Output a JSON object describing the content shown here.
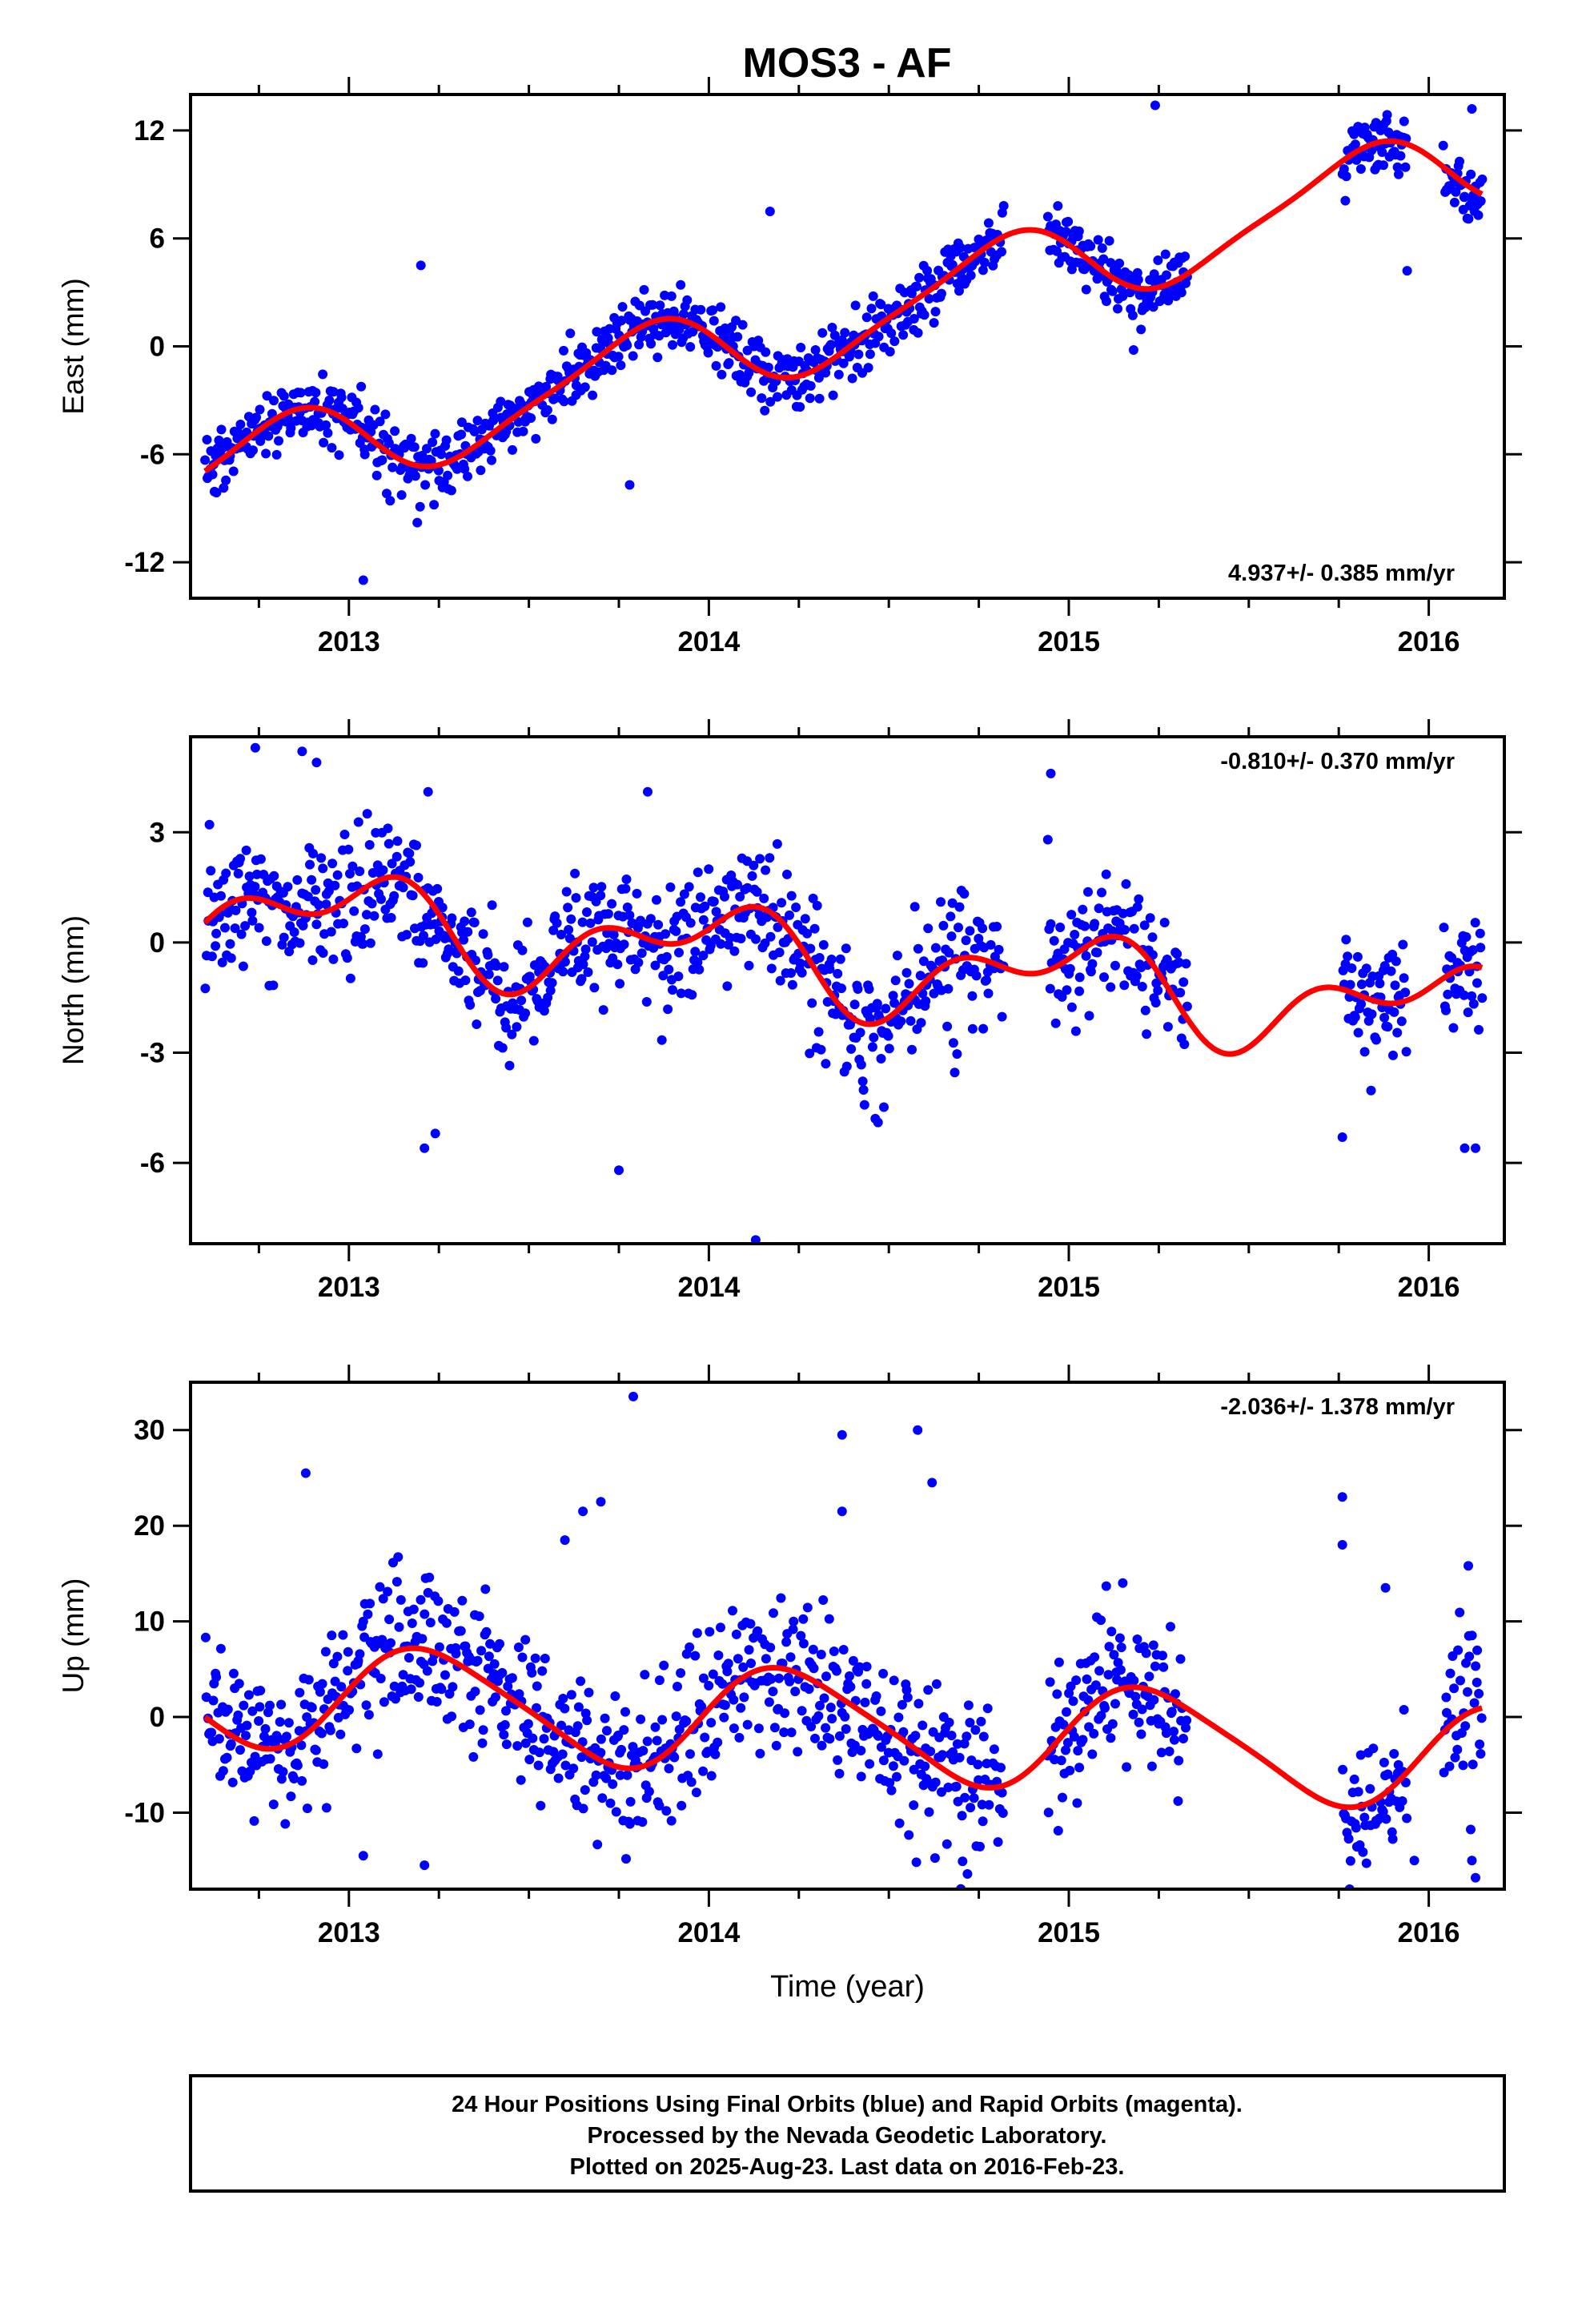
{
  "title": "MOS3 - AF",
  "colors": {
    "data": "#0000ff",
    "fit": "#ff0000",
    "frame": "#000000"
  },
  "chart_data": [
    {
      "type": "scatter",
      "ylabel": "East (mm)",
      "xlabel": "",
      "xlim": [
        2012.56,
        2016.21
      ],
      "ylim": [
        -14,
        14
      ],
      "x_ticks": [
        2013,
        2014,
        2015,
        2016
      ],
      "y_ticks": [
        12,
        6,
        0,
        -6,
        -12
      ],
      "y_tick_labels": [
        "12",
        "6",
        "0",
        "-6",
        "-12"
      ],
      "rate": "4.937+/- 0.385 mm/yr",
      "rate_position": "bottom-right",
      "trend_start": -7.3,
      "trend_per_year": 4.937,
      "season": [
        [
          1.0,
          -2.2,
          0.8
        ],
        [
          2.0,
          -0.4,
          0.3
        ]
      ],
      "scatter_sd": 0.9,
      "outliers": [
        [
          2013.19,
          -9.8
        ],
        [
          2013.04,
          -13.0
        ],
        [
          2013.78,
          -7.7
        ],
        [
          2015.04,
          4.3
        ],
        [
          2015.18,
          -0.2
        ],
        [
          2015.24,
          13.4
        ],
        [
          2016.12,
          13.2
        ],
        [
          2015.94,
          4.2
        ],
        [
          2014.17,
          7.5
        ],
        [
          2013.2,
          4.5
        ],
        [
          2013.76,
          2.2
        ]
      ],
      "series": [
        {
          "name": "Final Orbits (blue)",
          "segments": [
            [
              2012.6,
              2014.82
            ],
            [
              2014.94,
              2015.33
            ],
            [
              2015.76,
              2015.94
            ],
            [
              2016.04,
              2016.15
            ]
          ],
          "points_per_year": 320
        },
        {
          "name": "Fit"
        }
      ]
    },
    {
      "type": "scatter",
      "ylabel": "North (mm)",
      "xlabel": "",
      "xlim": [
        2012.56,
        2016.21
      ],
      "ylim": [
        -8.2,
        5.6
      ],
      "x_ticks": [
        2013,
        2014,
        2015,
        2016
      ],
      "y_ticks": [
        3,
        0,
        -3,
        -6
      ],
      "y_tick_labels": [
        "3",
        "0",
        "-3",
        "-6"
      ],
      "rate": "-0.810+/- 0.370 mm/yr",
      "rate_position": "top-right",
      "trend_start": 0.9,
      "trend_per_year": -0.81,
      "season": [
        [
          1.0,
          0.0,
          1.0
        ],
        [
          2.0,
          0.6,
          -0.4
        ]
      ],
      "scatter_sd": 0.9,
      "outliers": [
        [
          2012.74,
          5.3
        ],
        [
          2012.87,
          5.2
        ],
        [
          2012.91,
          4.9
        ],
        [
          2013.21,
          -5.6
        ],
        [
          2013.24,
          -5.2
        ],
        [
          2013.75,
          -6.2
        ],
        [
          2014.13,
          -8.1
        ],
        [
          2014.47,
          -4.9
        ],
        [
          2014.95,
          4.6
        ],
        [
          2015.76,
          -5.3
        ],
        [
          2016.1,
          -5.6
        ],
        [
          2016.13,
          -5.6
        ],
        [
          2013.22,
          4.1
        ],
        [
          2013.83,
          4.1
        ]
      ],
      "series": [
        {
          "name": "Final Orbits (blue)",
          "segments": [
            [
              2012.6,
              2014.82
            ],
            [
              2014.94,
              2015.33
            ],
            [
              2015.76,
              2015.94
            ],
            [
              2016.04,
              2016.15
            ]
          ],
          "points_per_year": 320
        },
        {
          "name": "Fit"
        }
      ]
    },
    {
      "type": "scatter",
      "ylabel": "Up (mm)",
      "xlabel": "Time (year)",
      "xlim": [
        2012.56,
        2016.21
      ],
      "ylim": [
        -18,
        35
      ],
      "x_ticks": [
        2013,
        2014,
        2015,
        2016
      ],
      "y_ticks": [
        30,
        20,
        10,
        0,
        -10
      ],
      "y_tick_labels": [
        "30",
        "20",
        "10",
        "0",
        "-10"
      ],
      "rate": "-2.036+/- 1.378 mm/yr",
      "rate_position": "top-right",
      "trend_start": 2.8,
      "trend_per_year": -2.036,
      "season": [
        [
          1.0,
          5.4,
          0.6
        ],
        [
          2.0,
          0.8,
          0.3
        ]
      ],
      "scatter_sd": 4.2,
      "outliers": [
        [
          2012.88,
          25.5
        ],
        [
          2013.79,
          33.5
        ],
        [
          2014.37,
          29.5
        ],
        [
          2014.58,
          30.0
        ],
        [
          2014.37,
          21.5
        ],
        [
          2014.62,
          24.5
        ],
        [
          2013.7,
          22.5
        ],
        [
          2015.76,
          23.0
        ],
        [
          2015.76,
          18.0
        ],
        [
          2015.88,
          13.5
        ],
        [
          2016.11,
          15.8
        ],
        [
          2016.13,
          -16.8
        ],
        [
          2016.12,
          -15.0
        ],
        [
          2013.21,
          -15.5
        ],
        [
          2013.04,
          -14.5
        ],
        [
          2015.15,
          14.0
        ],
        [
          2015.96,
          -15.0
        ],
        [
          2013.6,
          18.5
        ],
        [
          2013.65,
          21.5
        ]
      ],
      "series": [
        {
          "name": "Final Orbits (blue)",
          "segments": [
            [
              2012.6,
              2014.82
            ],
            [
              2014.94,
              2015.33
            ],
            [
              2015.76,
              2015.94
            ],
            [
              2016.04,
              2016.15
            ]
          ],
          "points_per_year": 320
        },
        {
          "name": "Fit"
        }
      ]
    }
  ],
  "footer": {
    "line1": "24 Hour Positions Using Final Orbits (blue) and Rapid Orbits (magenta).",
    "line2": "Processed by the Nevada Geodetic Laboratory.",
    "line3": "Plotted on 2025-Aug-23. Last data on 2016-Feb-23."
  }
}
